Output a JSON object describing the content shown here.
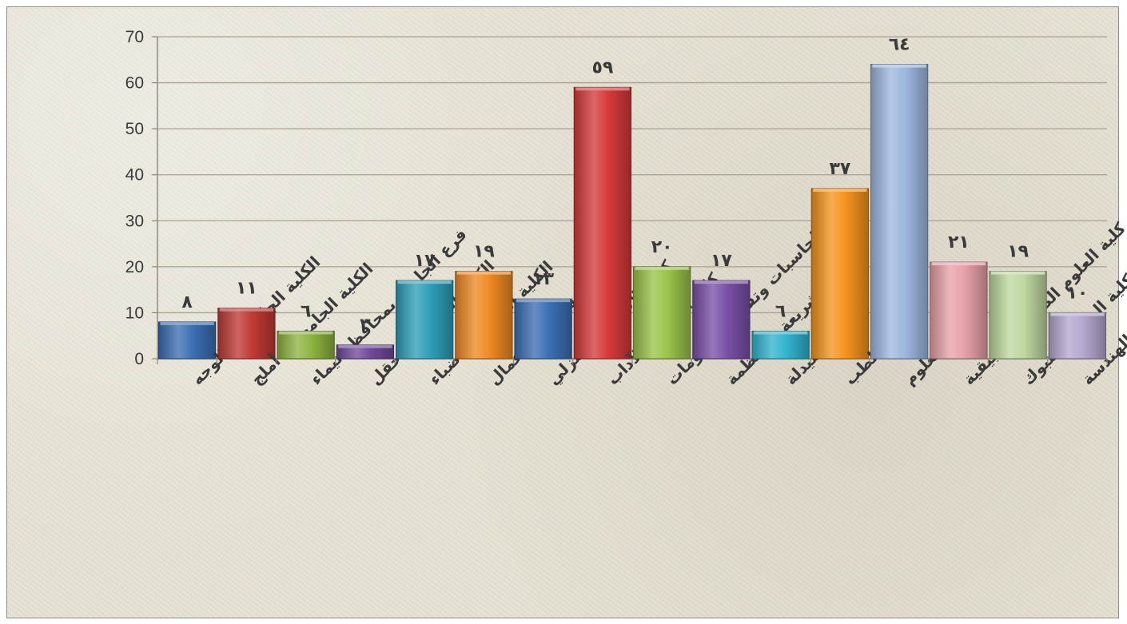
{
  "chart_data": {
    "type": "bar",
    "title": "",
    "xlabel": "",
    "ylabel": "",
    "ylim": [
      0,
      70
    ],
    "yticks": [
      "0",
      "10",
      "20",
      "30",
      "40",
      "50",
      "60",
      "70"
    ],
    "grid": true,
    "legend": "none",
    "categories": [
      "الكلية الجامعية - الوجه",
      "الكلية الجامعية - أملج",
      "فرع الجامعة بمحافظة تيماء",
      "الكلية الجامعية - حقل",
      "الكلية الجامعية - ضباء",
      "كلية إدارة الأعمال",
      "كلية الاقتصاد المنزلي",
      "كلية التربية والآداب",
      "كلية الحاسبات وتقنية المعلومات",
      "كلية الشريعة والأنظمة",
      "كلية الصيدلة",
      "كلية الطب",
      "كلية العلوم",
      "كلية العلوم الطبية التطبيقية",
      "كلية المجتمع بتبوك",
      "كلية الهندسة"
    ],
    "values": [
      8,
      11,
      6,
      3,
      17,
      19,
      13,
      59,
      20,
      17,
      6,
      37,
      64,
      21,
      19,
      10
    ],
    "data_labels": [
      "٨",
      "١١",
      "٦",
      "٣",
      "١٧",
      "١٩",
      "١٣",
      "٥٩",
      "٢٠",
      "١٧",
      "٦",
      "٣٧",
      "٦٤",
      "٢١",
      "١٩",
      "١٠"
    ],
    "colors": [
      "#3c6fb4",
      "#bf3a36",
      "#8db43f",
      "#6e4a9a",
      "#2e9fba",
      "#ef8a23",
      "#3c6fb4",
      "#d63a3a",
      "#9bc44a",
      "#7a50a8",
      "#32b4d0",
      "#f5941e",
      "#9fb8e0",
      "#e8a2a8",
      "#bfd8a0",
      "#b5a8d0"
    ]
  }
}
